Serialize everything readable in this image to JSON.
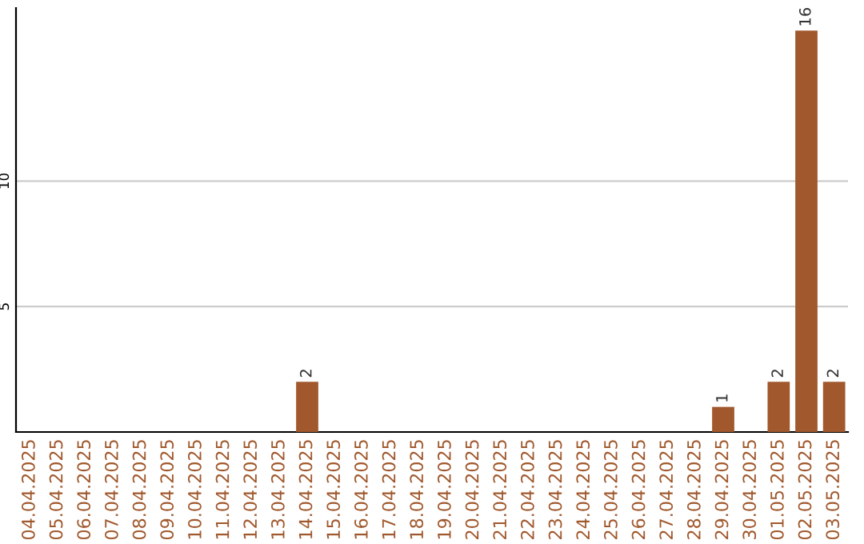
{
  "chart_data": {
    "type": "bar",
    "categories": [
      "04.04.2025",
      "05.04.2025",
      "06.04.2025",
      "07.04.2025",
      "08.04.2025",
      "09.04.2025",
      "10.04.2025",
      "11.04.2025",
      "12.04.2025",
      "13.04.2025",
      "14.04.2025",
      "15.04.2025",
      "16.04.2025",
      "17.04.2025",
      "18.04.2025",
      "19.04.2025",
      "20.04.2025",
      "21.04.2025",
      "22.04.2025",
      "23.04.2025",
      "24.04.2025",
      "25.04.2025",
      "26.04.2025",
      "27.04.2025",
      "28.04.2025",
      "29.04.2025",
      "30.04.2025",
      "01.05.2025",
      "02.05.2025",
      "03.05.2025"
    ],
    "values": [
      0,
      0,
      0,
      0,
      0,
      0,
      0,
      0,
      0,
      0,
      2,
      0,
      0,
      0,
      0,
      0,
      0,
      0,
      0,
      0,
      0,
      0,
      0,
      0,
      0,
      1,
      0,
      2,
      16,
      2
    ],
    "value_labels": [
      null,
      null,
      null,
      null,
      null,
      null,
      null,
      null,
      null,
      null,
      "2",
      null,
      null,
      null,
      null,
      null,
      null,
      null,
      null,
      null,
      null,
      null,
      null,
      null,
      null,
      "1",
      null,
      "2",
      "16",
      "2"
    ],
    "color": "#a0582c",
    "ylim": [
      0,
      16.9
    ],
    "yticks": [
      5,
      10
    ],
    "grid": "y"
  }
}
